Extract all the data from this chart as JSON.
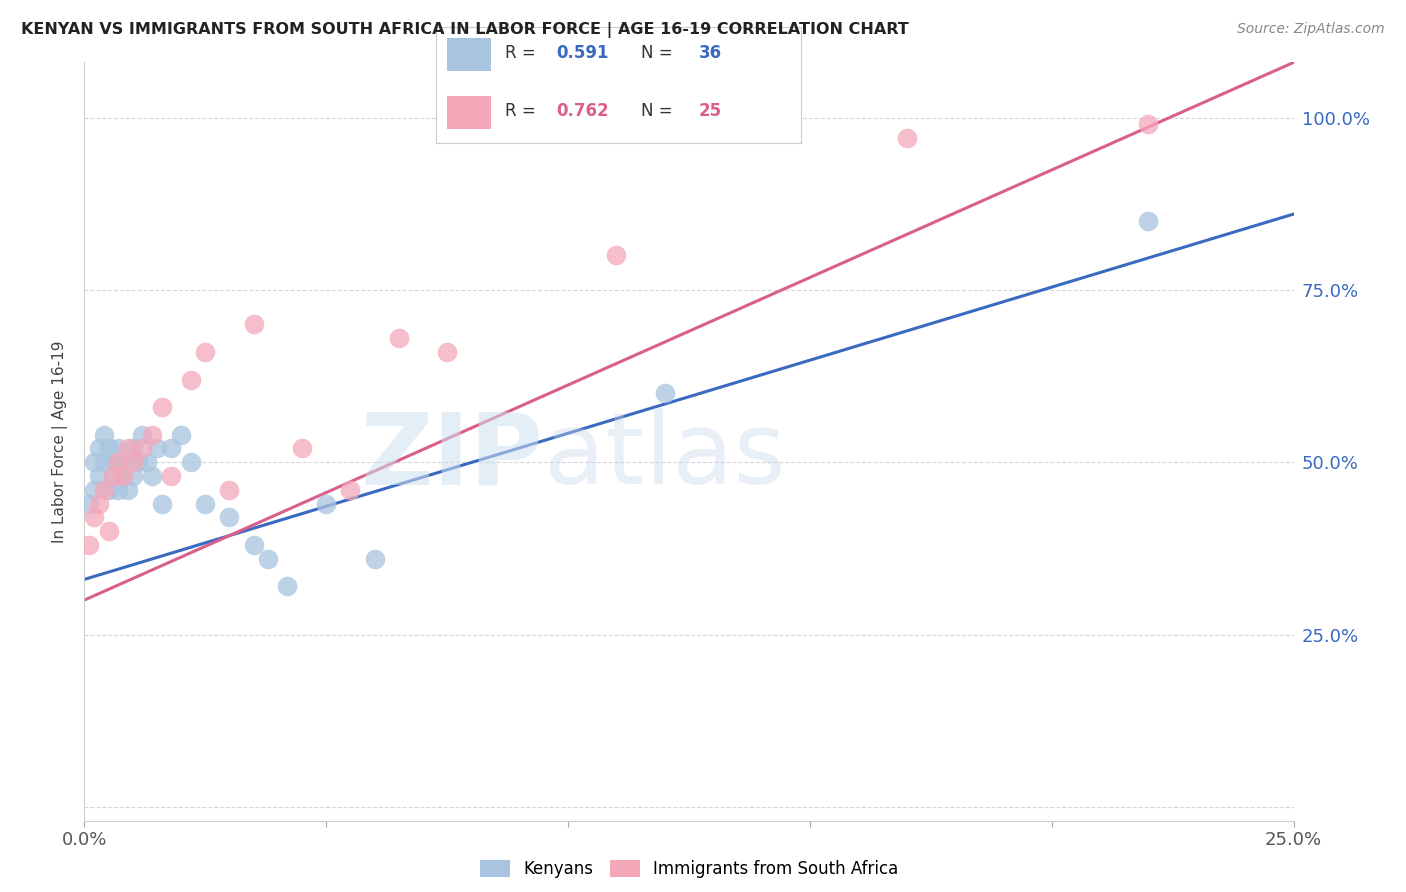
{
  "title": "KENYAN VS IMMIGRANTS FROM SOUTH AFRICA IN LABOR FORCE | AGE 16-19 CORRELATION CHART",
  "source": "Source: ZipAtlas.com",
  "ylabel": "In Labor Force | Age 16-19",
  "xlim": [
    0.0,
    0.25
  ],
  "ylim": [
    -0.02,
    1.08
  ],
  "yticks": [
    0.0,
    0.25,
    0.5,
    0.75,
    1.0
  ],
  "xticks": [
    0.0,
    0.05,
    0.1,
    0.15,
    0.2,
    0.25
  ],
  "ytick_labels": [
    "",
    "25.0%",
    "50.0%",
    "75.0%",
    "100.0%"
  ],
  "xtick_labels": [
    "0.0%",
    "",
    "",
    "",
    "",
    "25.0%"
  ],
  "kenyan_color": "#a8c4e0",
  "sa_color": "#f4a7b9",
  "kenyan_line_color": "#3a6abf",
  "sa_line_color": "#d95f8a",
  "kenyan_x": [
    0.001,
    0.002,
    0.002,
    0.003,
    0.003,
    0.004,
    0.004,
    0.005,
    0.005,
    0.006,
    0.006,
    0.007,
    0.007,
    0.008,
    0.008,
    0.009,
    0.01,
    0.01,
    0.011,
    0.012,
    0.013,
    0.014,
    0.015,
    0.016,
    0.018,
    0.02,
    0.022,
    0.025,
    0.03,
    0.035,
    0.038,
    0.042,
    0.05,
    0.06,
    0.12,
    0.22
  ],
  "kenyan_y": [
    0.44,
    0.46,
    0.5,
    0.52,
    0.48,
    0.54,
    0.5,
    0.52,
    0.46,
    0.5,
    0.48,
    0.52,
    0.46,
    0.5,
    0.48,
    0.46,
    0.52,
    0.48,
    0.5,
    0.54,
    0.5,
    0.48,
    0.52,
    0.44,
    0.52,
    0.54,
    0.5,
    0.44,
    0.42,
    0.38,
    0.36,
    0.32,
    0.44,
    0.36,
    0.6,
    0.85
  ],
  "sa_x": [
    0.001,
    0.002,
    0.003,
    0.004,
    0.005,
    0.006,
    0.007,
    0.008,
    0.009,
    0.01,
    0.012,
    0.014,
    0.016,
    0.018,
    0.022,
    0.025,
    0.03,
    0.035,
    0.045,
    0.055,
    0.065,
    0.075,
    0.11,
    0.17,
    0.22
  ],
  "sa_y": [
    0.38,
    0.42,
    0.44,
    0.46,
    0.4,
    0.48,
    0.5,
    0.48,
    0.52,
    0.5,
    0.52,
    0.54,
    0.58,
    0.48,
    0.62,
    0.66,
    0.46,
    0.7,
    0.52,
    0.46,
    0.68,
    0.66,
    0.8,
    0.97,
    0.99
  ],
  "kenyan_line": [
    0.0,
    0.25,
    0.33,
    0.86
  ],
  "sa_line": [
    0.0,
    0.25,
    0.3,
    1.08
  ]
}
